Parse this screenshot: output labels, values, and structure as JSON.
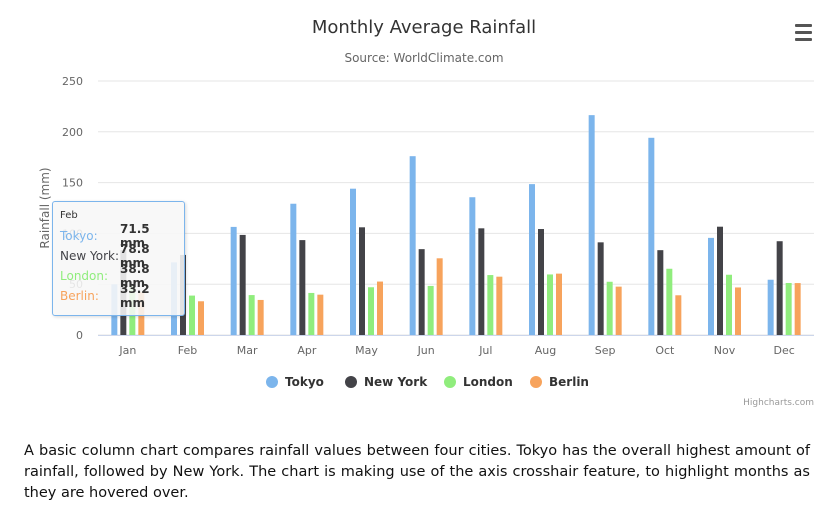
{
  "chart_data": {
    "type": "bar",
    "title": "Monthly Average Rainfall",
    "subtitle": "Source: WorldClimate.com",
    "xlabel": "",
    "ylabel": "Rainfall (mm)",
    "ylim": [
      0,
      250
    ],
    "yticks": [
      0,
      50,
      100,
      150,
      200,
      250
    ],
    "grid": true,
    "legend": "bottom-center",
    "categories": [
      "Jan",
      "Feb",
      "Mar",
      "Apr",
      "May",
      "Jun",
      "Jul",
      "Aug",
      "Sep",
      "Oct",
      "Nov",
      "Dec"
    ],
    "series": [
      {
        "name": "Tokyo",
        "color": "#7cb5ec",
        "values": [
          49.9,
          71.5,
          106.4,
          129.2,
          144.0,
          176.0,
          135.6,
          148.5,
          216.4,
          194.1,
          95.6,
          54.4
        ]
      },
      {
        "name": "New York",
        "color": "#434348",
        "values": [
          83.6,
          78.8,
          98.5,
          93.4,
          106.0,
          84.5,
          105.0,
          104.3,
          91.2,
          83.5,
          106.6,
          92.3
        ]
      },
      {
        "name": "London",
        "color": "#90ed7d",
        "values": [
          48.9,
          38.8,
          39.3,
          41.4,
          47.0,
          48.3,
          59.0,
          59.6,
          52.4,
          65.2,
          59.3,
          51.2
        ]
      },
      {
        "name": "Berlin",
        "color": "#f7a35c",
        "values": [
          42.4,
          33.2,
          34.5,
          39.7,
          52.6,
          75.5,
          57.4,
          60.4,
          47.6,
          39.1,
          46.8,
          51.1
        ]
      }
    ],
    "credits": "Highcharts.com"
  },
  "tooltip": {
    "title": "Feb",
    "rows": [
      {
        "name": "Tokyo:",
        "value": "71.5 mm",
        "color": "#7cb5ec"
      },
      {
        "name": "New York:",
        "value": "78.8 mm",
        "color": "#434348"
      },
      {
        "name": "London:",
        "value": "38.8 mm",
        "color": "#90ed7d"
      },
      {
        "name": "Berlin:",
        "value": "33.2 mm",
        "color": "#f7a35c"
      }
    ]
  },
  "menu": {
    "icon": "hamburger-menu-icon"
  },
  "caption": "A basic column chart compares rainfall values between four cities. Tokyo has the overall highest amount of rainfall, followed by New York. The chart is making use of the axis crosshair feature, to highlight months as they are hovered over."
}
